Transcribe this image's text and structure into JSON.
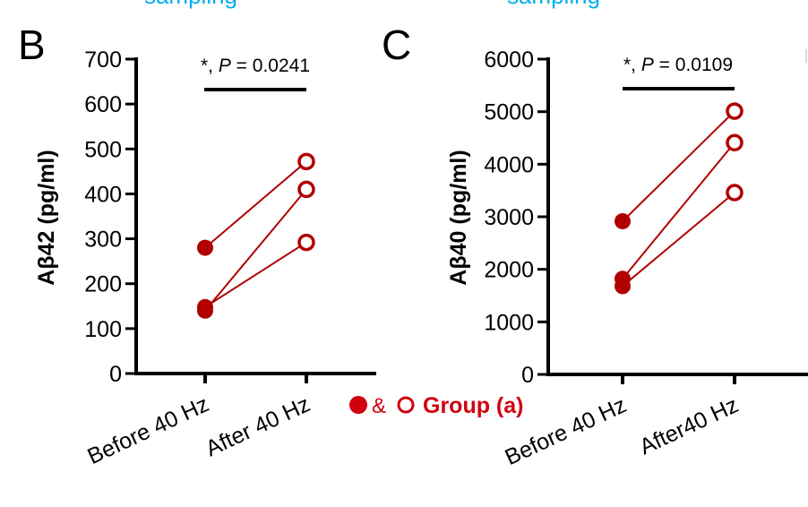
{
  "header_fragments": [
    "sampling",
    "sampling"
  ],
  "legend": {
    "text": "Group (a)",
    "amp": "&",
    "color": "#d0000f"
  },
  "colors": {
    "series": "#b00000",
    "header": "#00aeef",
    "axis": "#000000"
  },
  "chart_data": [
    {
      "panel": "B",
      "type": "line",
      "ylabel": "Aβ42 (pg/ml)",
      "categories": [
        "Before 40 Hz",
        "After 40 Hz"
      ],
      "yticks": [
        0,
        100,
        200,
        300,
        400,
        500,
        600,
        700
      ],
      "ylim": [
        0,
        700
      ],
      "significance": {
        "prefix": "*, ",
        "p_symbol": "P",
        "p_text": " = 0.0241"
      },
      "pairs": [
        [
          280,
          472
        ],
        [
          140,
          410
        ],
        [
          148,
          292
        ]
      ]
    },
    {
      "panel": "C",
      "type": "line",
      "ylabel": "Aβ40 (pg/ml)",
      "categories": [
        "Before 40 Hz",
        "After40 Hz"
      ],
      "yticks": [
        0,
        1000,
        2000,
        3000,
        4000,
        5000,
        6000
      ],
      "ylim": [
        0,
        6000
      ],
      "significance": {
        "prefix": "*, ",
        "p_symbol": "P",
        "p_text": " = 0.0109"
      },
      "pairs": [
        [
          2915,
          5010
        ],
        [
          1820,
          4410
        ],
        [
          1680,
          3460
        ]
      ]
    }
  ]
}
